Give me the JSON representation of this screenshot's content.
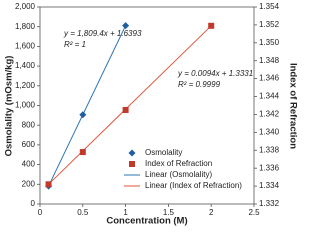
{
  "chart_data": {
    "type": "scatter",
    "x_label": "Concentration (M)",
    "y_label": "Osmolality (mOsm/kg)",
    "y2_label": "Index of Refraction",
    "xlim": [
      0,
      2.5
    ],
    "xticks": [
      0,
      0.5,
      1,
      1.5,
      2,
      2.5
    ],
    "ylim": [
      0,
      2000
    ],
    "yticks": [
      0,
      200,
      400,
      600,
      800,
      {
        "value": 1000,
        "label": "1,000"
      },
      {
        "value": 1200,
        "label": "1,200"
      },
      {
        "value": 1400,
        "label": "1,400"
      },
      {
        "value": 1600,
        "label": "1,600"
      },
      {
        "value": 1800,
        "label": "1,800"
      },
      {
        "value": 2000,
        "label": "2,000"
      }
    ],
    "y2lim": [
      1.332,
      1.354
    ],
    "y2ticks": [
      1.332,
      1.334,
      1.336,
      1.338,
      {
        "value": 1.34,
        "label": "1.340"
      },
      1.342,
      1.344,
      1.346,
      1.348,
      {
        "value": 1.35,
        "label": "1.350"
      },
      1.352,
      1.354
    ],
    "grid": false,
    "series": [
      {
        "name": "Osmolality",
        "color": "#1f5f9e",
        "kind": "marker",
        "marker": "diamond",
        "x": [
          0.1,
          0.5,
          1
        ],
        "values": [
          182,
          906,
          1811
        ]
      },
      {
        "name": "Index of Refraction",
        "color": "#c0392b",
        "kind": "marker",
        "marker": "square",
        "axis": "y2",
        "x": [
          0.1,
          0.5,
          1,
          2
        ],
        "values": [
          1.3342,
          1.3378,
          1.3425,
          1.3519
        ]
      },
      {
        "name": "Linear (Osmolality)",
        "color": "#2e75b6",
        "kind": "line",
        "x": [
          0.1,
          1
        ],
        "values": [
          182,
          1811
        ]
      },
      {
        "name": "Linear (Index of Refraction)",
        "color": "#e0553a",
        "kind": "line",
        "axis": "y2",
        "x": [
          0.1,
          2
        ],
        "values": [
          1.3342,
          1.3519
        ]
      }
    ],
    "annotations": [
      "y = 1,809.4x + 1.6393",
      "R² = 1",
      "y = 0.0094x + 1.3331",
      "R² = 0.9999"
    ]
  }
}
